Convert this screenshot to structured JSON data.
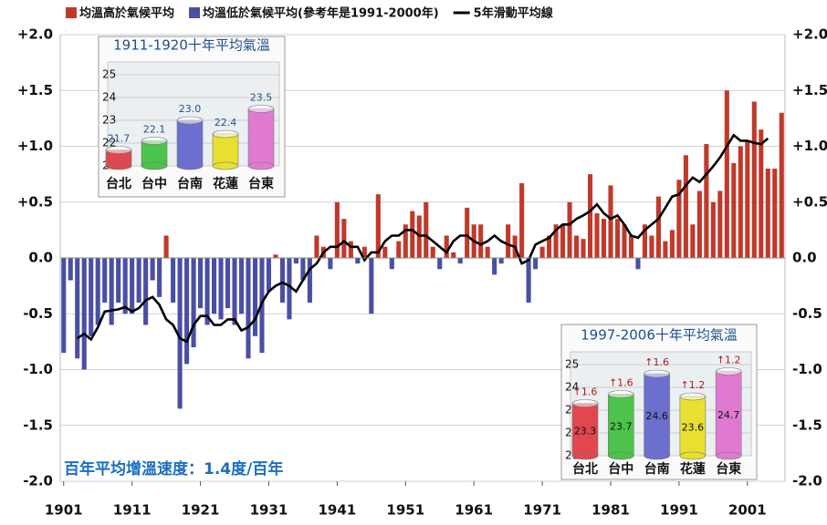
{
  "chart_data": [
    {
      "type": "bar",
      "legend": "top",
      "grid": true,
      "x": [
        1901,
        1902,
        1903,
        1904,
        1905,
        1906,
        1907,
        1908,
        1909,
        1910,
        1911,
        1912,
        1913,
        1914,
        1915,
        1916,
        1917,
        1918,
        1919,
        1920,
        1921,
        1922,
        1923,
        1924,
        1925,
        1926,
        1927,
        1928,
        1929,
        1930,
        1931,
        1932,
        1933,
        1934,
        1935,
        1936,
        1937,
        1938,
        1939,
        1940,
        1941,
        1942,
        1943,
        1944,
        1945,
        1946,
        1947,
        1948,
        1949,
        1950,
        1951,
        1952,
        1953,
        1954,
        1955,
        1956,
        1957,
        1958,
        1959,
        1960,
        1961,
        1962,
        1963,
        1964,
        1965,
        1966,
        1967,
        1968,
        1969,
        1970,
        1971,
        1972,
        1973,
        1974,
        1975,
        1976,
        1977,
        1978,
        1979,
        1980,
        1981,
        1982,
        1983,
        1984,
        1985,
        1986,
        1987,
        1988,
        1989,
        1990,
        1991,
        1992,
        1993,
        1994,
        1995,
        1996,
        1997,
        1998,
        1999,
        2000,
        2001,
        2002,
        2003,
        2004,
        2005,
        2006
      ],
      "xlim": [
        1900.5,
        2006.5
      ],
      "xticks": [
        1901,
        1911,
        1921,
        1931,
        1941,
        1951,
        1961,
        1971,
        1981,
        1991,
        2001
      ],
      "ylim": [
        -2.0,
        2.0
      ],
      "yticks": [
        {
          "value": 2.0,
          "label": "+2.0"
        },
        {
          "value": 1.5,
          "label": "+1.5"
        },
        {
          "value": 1.0,
          "label": "+1.0"
        },
        {
          "value": 0.5,
          "label": "+0.5"
        },
        {
          "value": 0,
          "label": "0.0"
        },
        {
          "value": -0.5,
          "label": "-0.5"
        },
        {
          "value": -1.0,
          "label": "-1.0"
        },
        {
          "value": -1.5,
          "label": "-1.5"
        },
        {
          "value": -2.0,
          "label": "-2.0"
        }
      ],
      "annotation": "百年平均增溫速度：1.4度/百年",
      "series": [
        {
          "name": "均溫高於氣候平均",
          "type": "bar",
          "color": "#c0392b",
          "values": [
            null,
            null,
            null,
            null,
            null,
            null,
            null,
            null,
            null,
            null,
            null,
            null,
            null,
            null,
            null,
            0.2,
            null,
            null,
            null,
            null,
            null,
            null,
            null,
            null,
            null,
            null,
            null,
            null,
            null,
            null,
            null,
            0.03,
            null,
            null,
            null,
            null,
            null,
            0.2,
            0.1,
            null,
            0.5,
            0.35,
            0.15,
            null,
            0.1,
            null,
            0.57,
            0.1,
            null,
            0.15,
            0.3,
            0.42,
            0.38,
            0.5,
            0.1,
            null,
            0.2,
            0.05,
            null,
            0.45,
            0.3,
            0.3,
            0.1,
            null,
            null,
            0.3,
            0.2,
            0.67,
            null,
            null,
            0.1,
            0.2,
            0.3,
            0.3,
            0.5,
            0.2,
            0.17,
            0.75,
            0.4,
            0.35,
            0.65,
            0.35,
            0.3,
            0.2,
            null,
            0.3,
            0.2,
            0.55,
            0.15,
            0.25,
            0.7,
            0.92,
            0.3,
            0.6,
            1.02,
            0.5,
            0.6,
            1.5,
            0.85,
            1.0,
            1.05,
            1.4,
            1.15,
            0.8,
            0.8,
            1.3
          ]
        },
        {
          "name": "均溫低於氣候平均(參考年是1991-2000年)",
          "type": "bar",
          "color": "#4a4fa3",
          "values": [
            -0.85,
            -0.2,
            -0.9,
            -1.0,
            -0.7,
            -0.6,
            -0.4,
            -0.6,
            -0.4,
            -0.5,
            -0.5,
            -0.4,
            -0.6,
            -0.2,
            -0.35,
            null,
            -0.4,
            -1.35,
            -0.95,
            -0.8,
            -0.45,
            -0.6,
            -0.5,
            -0.55,
            -0.45,
            -0.6,
            -0.5,
            -0.9,
            -0.7,
            -0.85,
            -0.3,
            null,
            -0.4,
            -0.55,
            -0.05,
            -0.2,
            -0.4,
            null,
            null,
            -0.1,
            null,
            null,
            null,
            -0.05,
            null,
            -0.5,
            null,
            null,
            -0.1,
            null,
            null,
            null,
            null,
            null,
            null,
            -0.1,
            null,
            null,
            -0.05,
            null,
            null,
            null,
            null,
            -0.15,
            -0.05,
            null,
            null,
            null,
            -0.4,
            -0.1,
            null,
            null,
            null,
            null,
            null,
            null,
            null,
            null,
            null,
            null,
            null,
            null,
            null,
            null,
            -0.1,
            null,
            null,
            null,
            null,
            null,
            null,
            null,
            null,
            null,
            null,
            null,
            null,
            null,
            null,
            null,
            null,
            null,
            null,
            null,
            null,
            null
          ]
        },
        {
          "name": "5年滑動平均線",
          "type": "line",
          "color": "#000000",
          "values": [
            null,
            null,
            -0.72,
            -0.68,
            -0.73,
            -0.62,
            -0.48,
            -0.47,
            -0.46,
            -0.44,
            -0.48,
            -0.45,
            -0.38,
            -0.35,
            -0.42,
            -0.55,
            -0.6,
            -0.72,
            -0.75,
            -0.6,
            -0.52,
            -0.52,
            -0.6,
            -0.6,
            -0.55,
            -0.55,
            -0.65,
            -0.62,
            -0.55,
            -0.4,
            -0.3,
            -0.25,
            -0.22,
            -0.25,
            -0.3,
            -0.2,
            -0.1,
            -0.05,
            0.05,
            0.1,
            0.1,
            0.15,
            0.1,
            0.1,
            -0.02,
            0.05,
            0.05,
            0.15,
            0.2,
            0.2,
            0.25,
            0.25,
            0.2,
            0.2,
            0.15,
            0.1,
            0.05,
            0.15,
            0.2,
            0.2,
            0.15,
            0.12,
            0.15,
            0.2,
            0.15,
            0.12,
            0.1,
            -0.05,
            -0.02,
            0.12,
            0.15,
            0.18,
            0.25,
            0.3,
            0.3,
            0.35,
            0.38,
            0.42,
            0.48,
            0.4,
            0.35,
            0.38,
            0.3,
            0.2,
            0.18,
            0.25,
            0.3,
            0.35,
            0.45,
            0.55,
            0.57,
            0.65,
            0.72,
            0.68,
            0.75,
            0.82,
            0.9,
            1.0,
            1.1,
            1.05,
            1.05,
            1.03,
            1.02,
            1.07,
            null,
            null
          ]
        }
      ]
    },
    {
      "type": "bar",
      "title": "1911-1920十年平均氣溫",
      "categories": [
        "台北",
        "台中",
        "台南",
        "花蓮",
        "台東"
      ],
      "values": [
        21.7,
        22.1,
        23.0,
        22.4,
        23.5
      ],
      "value_labels": [
        "21.7",
        "22.1",
        "23.0",
        "22.4",
        "23.5"
      ],
      "colors": [
        "#e0474f",
        "#4cc34a",
        "#6a6fd0",
        "#e8e030",
        "#e07ad0"
      ],
      "ylim": [
        21,
        25.5
      ],
      "yticks": [
        21,
        22,
        23,
        24,
        25
      ]
    },
    {
      "type": "bar",
      "title": "1997-2006十年平均氣溫",
      "categories": [
        "台北",
        "台中",
        "台南",
        "花蓮",
        "台東"
      ],
      "values": [
        23.3,
        23.7,
        24.6,
        23.6,
        24.7
      ],
      "increase_labels": [
        "↑1.6",
        "↑1.6",
        "↑1.6",
        "↑1.2",
        "↑1.2"
      ],
      "colors": [
        "#e0474f",
        "#4cc34a",
        "#6a6fd0",
        "#e8e030",
        "#e07ad0"
      ],
      "ylim": [
        21,
        25.5
      ],
      "yticks": [
        21,
        22,
        23,
        24,
        25
      ]
    }
  ]
}
